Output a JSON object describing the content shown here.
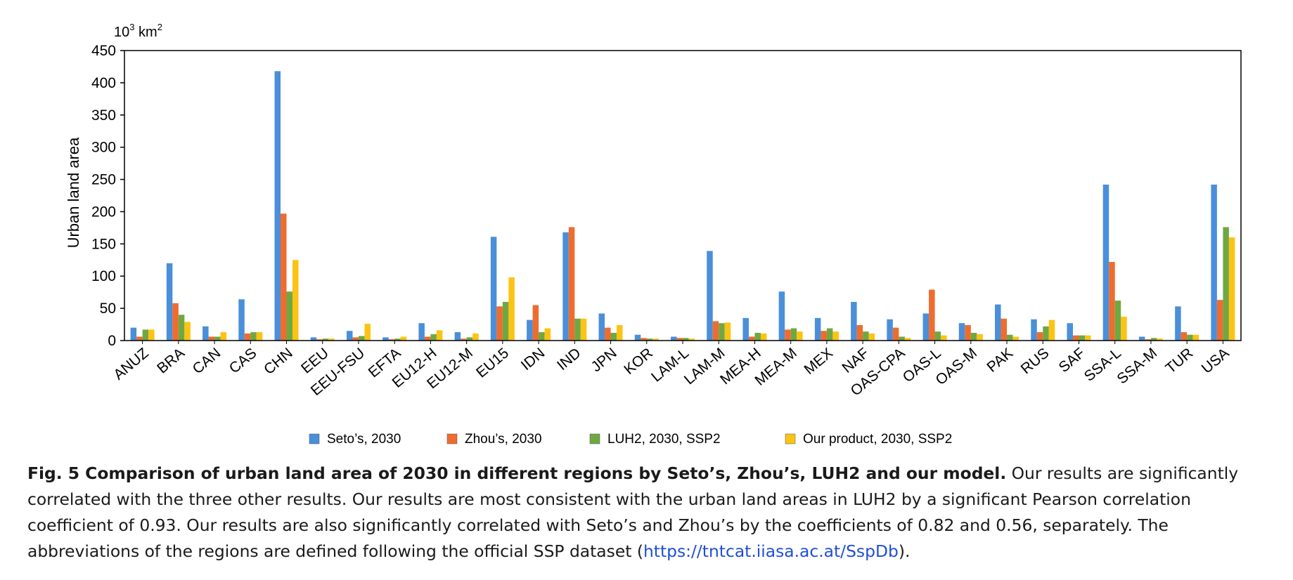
{
  "chart_data": {
    "type": "bar",
    "unit_label": "10³ km²",
    "ylabel": "Urban land area",
    "xlabel": "",
    "ylim": [
      0,
      450
    ],
    "yticks": [
      0,
      50,
      100,
      150,
      200,
      250,
      300,
      350,
      400,
      450
    ],
    "categories": [
      "ANUZ",
      "BRA",
      "CAN",
      "CAS",
      "CHN",
      "EEU",
      "EEU-FSU",
      "EFTA",
      "EU12-H",
      "EU12-M",
      "EU15",
      "IDN",
      "IND",
      "JPN",
      "KOR",
      "LAM-L",
      "LAM-M",
      "MEA-H",
      "MEA-M",
      "MEX",
      "NAF",
      "OAS-CPA",
      "OAS-L",
      "OAS-M",
      "PAK",
      "RUS",
      "SAF",
      "SSA-L",
      "SSA-M",
      "TUR",
      "USA"
    ],
    "series": [
      {
        "name": "Seto’s, 2030",
        "color": "#4a8fd9",
        "values": [
          20,
          120,
          22,
          64,
          418,
          5,
          15,
          5,
          27,
          13,
          161,
          32,
          168,
          42,
          9,
          6,
          139,
          35,
          76,
          35,
          60,
          33,
          42,
          27,
          56,
          33,
          27,
          242,
          6,
          53,
          242
        ]
      },
      {
        "name": "Zhou’s, 2030",
        "color": "#ee6c2e",
        "values": [
          6,
          58,
          6,
          11,
          197,
          2,
          5,
          2,
          6,
          3,
          53,
          55,
          176,
          20,
          4,
          4,
          30,
          6,
          17,
          15,
          24,
          20,
          79,
          24,
          34,
          13,
          8,
          122,
          2,
          13,
          63
        ]
      },
      {
        "name": "LUH2, 2030, SSP2",
        "color": "#6fa843",
        "values": [
          17,
          40,
          6,
          13,
          76,
          3,
          7,
          3,
          10,
          5,
          60,
          13,
          34,
          12,
          3,
          4,
          27,
          12,
          19,
          19,
          14,
          6,
          14,
          12,
          9,
          22,
          8,
          62,
          4,
          9,
          176
        ]
      },
      {
        "name": "Our product, 2030, SSP2",
        "color": "#fcc314",
        "values": [
          17,
          29,
          13,
          13,
          125,
          3,
          26,
          6,
          16,
          11,
          98,
          19,
          34,
          24,
          3,
          3,
          28,
          11,
          14,
          14,
          11,
          4,
          8,
          10,
          6,
          32,
          8,
          37,
          3,
          9,
          160
        ]
      }
    ],
    "grid": false,
    "legend_position": "bottom-center"
  },
  "caption": {
    "bold": "Fig. 5 Comparison of urban land area of 2030 in different regions by Seto’s, Zhou’s, LUH2 and our model.",
    "text": " Our results are significantly correlated with the three other results. Our results are most consistent with the urban land areas in LUH2 by a significant Pearson correlation coefficient of 0.93. Our results are also significantly correlated with Seto’s and Zhou’s by the coefficients of 0.82 and 0.56, separately. The abbreviations of the regions are defined following the official SSP dataset (",
    "link": "https://tntcat.iiasa.ac.at/SspDb",
    "end": ")."
  }
}
